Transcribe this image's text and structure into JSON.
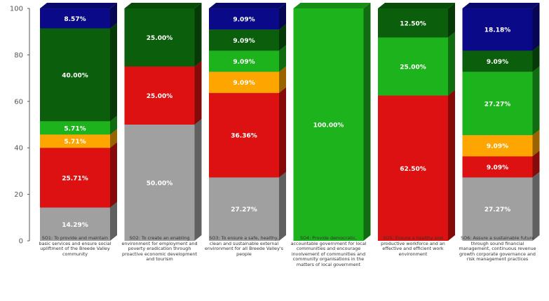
{
  "chart_data": {
    "type": "bar",
    "stacked": true,
    "three_d": true,
    "title": "",
    "xlabel": "",
    "ylabel": "",
    "ylim": [
      0,
      100
    ],
    "yticks": [
      0,
      20,
      40,
      60,
      80,
      100
    ],
    "grid": false,
    "legend": "none",
    "categories": [
      "SO1: To provide and maintain basic services and ensure social upliftment of the Breede Valley community",
      "SO2: To create an enabling environment for employment and poverty eradication through proactive economic development and tourism",
      "SO3: To ensure a safe, healthy, clean and sustainable external environment for all Breede Valley's people",
      "SO4: Provide democratic, accountable government for local communities and encourage involvement of communities and community organisations in the matters of local government",
      "SO5: Ensure a healthy and productive workforce and an effective and efficient work environment",
      "SO6: Assure a sustainable future through sound financial management, continuous revenue growth corporate governance and risk management practices"
    ],
    "series": [
      {
        "color": "#a0a0a0",
        "values": [
          14.29,
          50.0,
          27.27,
          0,
          0,
          27.27
        ]
      },
      {
        "color": "#dd1111",
        "values": [
          25.71,
          25.0,
          36.36,
          0,
          62.5,
          9.09
        ]
      },
      {
        "color": "#ffa500",
        "values": [
          5.71,
          0,
          9.09,
          0,
          0,
          9.09
        ]
      },
      {
        "color": "#1db31d",
        "values": [
          5.71,
          0,
          9.09,
          100.0,
          25.0,
          27.27
        ]
      },
      {
        "color": "#0b5e0b",
        "values": [
          40.0,
          25.0,
          9.09,
          0,
          12.5,
          9.09
        ]
      },
      {
        "color": "#0a0a88",
        "values": [
          8.57,
          0,
          9.09,
          0,
          0,
          18.18
        ]
      }
    ],
    "labels": [
      [
        "14.29%",
        "25.71%",
        "5.71%",
        "5.71%",
        "40.00%",
        "8.57%"
      ],
      [
        "50.00%",
        "25.00%",
        "",
        "",
        "25.00%",
        ""
      ],
      [
        "27.27%",
        "36.36%",
        "9.09%",
        "9.09%",
        "9.09%",
        "9.09%"
      ],
      [
        "",
        "",
        "",
        "100.00%",
        "",
        ""
      ],
      [
        "",
        "62.50%",
        "",
        "25.00%",
        "12.50%",
        ""
      ],
      [
        "27.27%",
        "9.09%",
        "9.09%",
        "27.27%",
        "9.09%",
        "18.18%"
      ]
    ]
  }
}
